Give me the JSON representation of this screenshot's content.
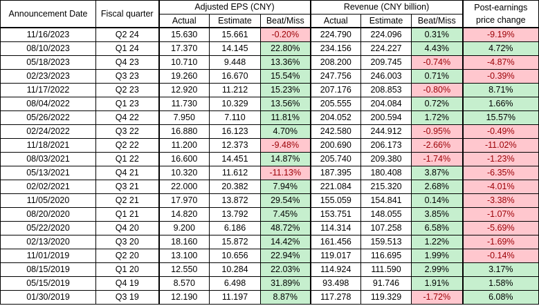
{
  "headers": {
    "announcement_date": "Announcement Date",
    "fiscal_quarter": "Fiscal quarter",
    "eps_group": "Adjusted EPS (CNY)",
    "revenue_group": "Revenue (CNY billion)",
    "price_change": "Post-earnings price change",
    "actual": "Actual",
    "estimate": "Estimate",
    "beat_miss": "Beat/Miss"
  },
  "colors": {
    "positive_fill": "#c6efce",
    "negative_fill": "#ffc7ce",
    "negative_text": "#9c0006"
  },
  "rows": [
    {
      "date": "11/16/2023",
      "quarter": "Q2 24",
      "eps_actual": "15.630",
      "eps_estimate": "15.661",
      "eps_beat": "-0.20%",
      "rev_actual": "224.790",
      "rev_estimate": "224.096",
      "rev_beat": "0.31%",
      "price_change": "-9.19%"
    },
    {
      "date": "08/10/2023",
      "quarter": "Q1 24",
      "eps_actual": "17.370",
      "eps_estimate": "14.145",
      "eps_beat": "22.80%",
      "rev_actual": "234.156",
      "rev_estimate": "224.227",
      "rev_beat": "4.43%",
      "price_change": "4.72%"
    },
    {
      "date": "05/18/2023",
      "quarter": "Q4 23",
      "eps_actual": "10.710",
      "eps_estimate": "9.448",
      "eps_beat": "13.36%",
      "rev_actual": "208.200",
      "rev_estimate": "209.745",
      "rev_beat": "-0.74%",
      "price_change": "-4.87%"
    },
    {
      "date": "02/23/2023",
      "quarter": "Q3 23",
      "eps_actual": "19.260",
      "eps_estimate": "16.670",
      "eps_beat": "15.54%",
      "rev_actual": "247.756",
      "rev_estimate": "246.003",
      "rev_beat": "0.71%",
      "price_change": "-0.39%"
    },
    {
      "date": "11/17/2022",
      "quarter": "Q2 23",
      "eps_actual": "12.920",
      "eps_estimate": "11.212",
      "eps_beat": "15.23%",
      "rev_actual": "207.176",
      "rev_estimate": "208.853",
      "rev_beat": "-0.80%",
      "price_change": "8.71%"
    },
    {
      "date": "08/04/2022",
      "quarter": "Q1 23",
      "eps_actual": "11.730",
      "eps_estimate": "10.329",
      "eps_beat": "13.56%",
      "rev_actual": "205.555",
      "rev_estimate": "204.084",
      "rev_beat": "0.72%",
      "price_change": "1.66%"
    },
    {
      "date": "05/26/2022",
      "quarter": "Q4 22",
      "eps_actual": "7.950",
      "eps_estimate": "7.110",
      "eps_beat": "11.81%",
      "rev_actual": "204.052",
      "rev_estimate": "200.594",
      "rev_beat": "1.72%",
      "price_change": "15.57%"
    },
    {
      "date": "02/24/2022",
      "quarter": "Q3 22",
      "eps_actual": "16.880",
      "eps_estimate": "16.123",
      "eps_beat": "4.70%",
      "rev_actual": "242.580",
      "rev_estimate": "244.912",
      "rev_beat": "-0.95%",
      "price_change": "-0.49%"
    },
    {
      "date": "11/18/2021",
      "quarter": "Q2 22",
      "eps_actual": "11.200",
      "eps_estimate": "12.373",
      "eps_beat": "-9.48%",
      "rev_actual": "200.690",
      "rev_estimate": "206.173",
      "rev_beat": "-2.66%",
      "price_change": "-11.02%"
    },
    {
      "date": "08/03/2021",
      "quarter": "Q1 22",
      "eps_actual": "16.600",
      "eps_estimate": "14.451",
      "eps_beat": "14.87%",
      "rev_actual": "205.740",
      "rev_estimate": "209.380",
      "rev_beat": "-1.74%",
      "price_change": "-1.23%"
    },
    {
      "date": "05/13/2021",
      "quarter": "Q4 21",
      "eps_actual": "10.320",
      "eps_estimate": "11.612",
      "eps_beat": "-11.13%",
      "rev_actual": "187.395",
      "rev_estimate": "180.408",
      "rev_beat": "3.87%",
      "price_change": "-6.35%"
    },
    {
      "date": "02/02/2021",
      "quarter": "Q3 21",
      "eps_actual": "22.000",
      "eps_estimate": "20.382",
      "eps_beat": "7.94%",
      "rev_actual": "221.084",
      "rev_estimate": "215.320",
      "rev_beat": "2.68%",
      "price_change": "-4.01%"
    },
    {
      "date": "11/05/2020",
      "quarter": "Q2 21",
      "eps_actual": "17.970",
      "eps_estimate": "13.872",
      "eps_beat": "29.54%",
      "rev_actual": "155.059",
      "rev_estimate": "154.841",
      "rev_beat": "0.14%",
      "price_change": "-3.38%"
    },
    {
      "date": "08/20/2020",
      "quarter": "Q1 21",
      "eps_actual": "14.820",
      "eps_estimate": "13.792",
      "eps_beat": "7.45%",
      "rev_actual": "153.751",
      "rev_estimate": "148.055",
      "rev_beat": "3.85%",
      "price_change": "-1.07%"
    },
    {
      "date": "05/22/2020",
      "quarter": "Q4 20",
      "eps_actual": "9.200",
      "eps_estimate": "6.186",
      "eps_beat": "48.72%",
      "rev_actual": "114.314",
      "rev_estimate": "107.258",
      "rev_beat": "6.58%",
      "price_change": "-5.69%"
    },
    {
      "date": "02/13/2020",
      "quarter": "Q3 20",
      "eps_actual": "18.160",
      "eps_estimate": "15.872",
      "eps_beat": "14.42%",
      "rev_actual": "161.456",
      "rev_estimate": "159.513",
      "rev_beat": "1.22%",
      "price_change": "-1.69%"
    },
    {
      "date": "11/01/2019",
      "quarter": "Q2 20",
      "eps_actual": "13.100",
      "eps_estimate": "10.656",
      "eps_beat": "22.94%",
      "rev_actual": "119.017",
      "rev_estimate": "116.695",
      "rev_beat": "1.99%",
      "price_change": "-0.14%"
    },
    {
      "date": "08/15/2019",
      "quarter": "Q1 20",
      "eps_actual": "12.550",
      "eps_estimate": "10.284",
      "eps_beat": "22.03%",
      "rev_actual": "114.924",
      "rev_estimate": "111.590",
      "rev_beat": "2.99%",
      "price_change": "3.17%"
    },
    {
      "date": "05/15/2019",
      "quarter": "Q4 19",
      "eps_actual": "8.570",
      "eps_estimate": "6.498",
      "eps_beat": "31.89%",
      "rev_actual": "93.498",
      "rev_estimate": "91.746",
      "rev_beat": "1.91%",
      "price_change": "1.58%"
    },
    {
      "date": "01/30/2019",
      "quarter": "Q3 19",
      "eps_actual": "12.190",
      "eps_estimate": "11.197",
      "eps_beat": "8.87%",
      "rev_actual": "117.278",
      "rev_estimate": "119.329",
      "rev_beat": "-1.72%",
      "price_change": "6.08%"
    }
  ]
}
